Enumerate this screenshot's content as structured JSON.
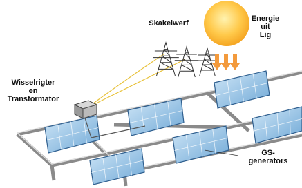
{
  "labels": {
    "switchyard": [
      "Skakelwerf"
    ],
    "energy": [
      "Energie",
      "uit",
      "Lig"
    ],
    "inverter": [
      "Wisselrigter",
      "en",
      "Transformator"
    ],
    "generators": [
      "GS-",
      "generators"
    ]
  }
}
